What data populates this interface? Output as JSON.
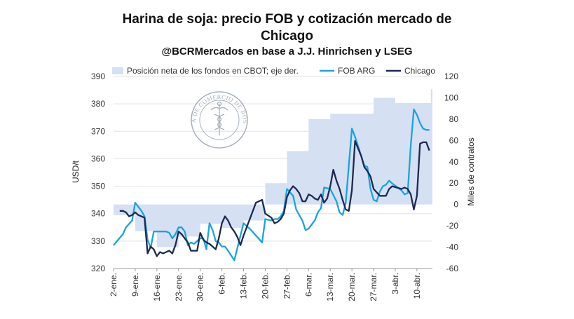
{
  "chart_data": {
    "type": "line",
    "title_line1": "Harina de soja: precio FOB y cotización mercado de",
    "title_line2": "Chicago",
    "subtitle": "@BCRMercados en base a J.J. Hinrichsen y LSEG",
    "ylabel": "USD/t",
    "y2label": "Miles de contratos",
    "ylim": [
      320,
      390
    ],
    "y2lim": [
      -60,
      120
    ],
    "yticks": [
      "320",
      "330",
      "340",
      "350",
      "360",
      "370",
      "380",
      "390"
    ],
    "y2ticks": [
      "-60",
      "-40",
      "-20",
      "0",
      "20",
      "40",
      "60",
      "80",
      "100",
      "120"
    ],
    "xlim": [
      0,
      103
    ],
    "xticks": [
      {
        "label": "2-ene.",
        "t": 0
      },
      {
        "label": "9-ene.",
        "t": 7
      },
      {
        "label": "16-ene.",
        "t": 14
      },
      {
        "label": "23-ene.",
        "t": 21
      },
      {
        "label": "30-ene.",
        "t": 28
      },
      {
        "label": "6-feb.",
        "t": 35
      },
      {
        "label": "13-feb.",
        "t": 42
      },
      {
        "label": "20-feb.",
        "t": 49
      },
      {
        "label": "27-feb.",
        "t": 56
      },
      {
        "label": "6-mar.",
        "t": 63
      },
      {
        "label": "13-mar.",
        "t": 70
      },
      {
        "label": "20-mar.",
        "t": 77
      },
      {
        "label": "27-mar.",
        "t": 84
      },
      {
        "label": "3-abr.",
        "t": 91
      },
      {
        "label": "10-abr.",
        "t": 98
      }
    ],
    "series": [
      {
        "name": "Posición neta de los fondos en CBOT; eje der.",
        "type": "area",
        "axis": "right",
        "color": "#d6e0f3",
        "t": [
          0,
          7,
          7,
          14,
          14,
          21,
          21,
          28,
          28,
          35,
          35,
          42,
          42,
          49,
          49,
          56,
          56,
          63,
          63,
          70,
          70,
          77,
          77,
          84,
          84,
          91,
          91,
          98,
          98,
          102.5,
          102.5,
          103
        ],
        "values": [
          -10,
          -10,
          -25,
          -25,
          -40,
          -40,
          -30,
          -30,
          -18,
          -18,
          -22,
          -22,
          -15,
          -15,
          20,
          20,
          50,
          50,
          80,
          80,
          85,
          85,
          85,
          85,
          100,
          100,
          95,
          95,
          95,
          95,
          108,
          108
        ]
      },
      {
        "name": "FOB ARG",
        "type": "line",
        "axis": "left",
        "color": "#1aa3e0",
        "t": [
          0,
          3,
          4,
          6,
          7,
          9,
          10,
          11,
          12,
          13,
          14,
          17,
          18,
          19,
          20,
          21,
          22,
          23,
          24,
          25,
          26,
          27,
          28,
          29,
          30,
          31,
          32,
          33,
          34,
          35,
          36,
          37,
          39,
          42,
          44,
          48,
          49,
          51,
          52,
          53,
          54,
          55,
          56,
          58,
          59,
          60,
          61,
          62,
          63,
          65,
          66,
          67,
          68,
          70,
          72,
          73,
          74,
          75,
          77,
          78,
          81,
          82,
          83,
          84,
          85,
          86,
          87,
          88,
          89,
          90,
          93,
          94,
          95,
          96,
          97,
          98,
          99,
          100,
          101,
          102
        ],
        "values": [
          328.5,
          332.5,
          335,
          337.5,
          344,
          341,
          339,
          330.5,
          327.5,
          333.5,
          333.5,
          333.5,
          333,
          331,
          332.5,
          335,
          335,
          333.5,
          328.5,
          329.5,
          329,
          330,
          331,
          331,
          327,
          336.5,
          334,
          330,
          329.5,
          328,
          328,
          326.5,
          323,
          336.5,
          334.5,
          329.5,
          338,
          337.5,
          338,
          338,
          339,
          341,
          349,
          346.5,
          341.5,
          339.5,
          337.5,
          334,
          334.5,
          337.5,
          340.5,
          342,
          349.5,
          349,
          344.5,
          340.5,
          339.5,
          344,
          371,
          368,
          357.5,
          357,
          349,
          345,
          344.5,
          348,
          350,
          350.5,
          352,
          351,
          348.5,
          347,
          347.5,
          365,
          378,
          376,
          373,
          371,
          370.5,
          370.5
        ]
      },
      {
        "name": "Chicago",
        "type": "line",
        "axis": "left",
        "color": "#1c2a50",
        "t": [
          0,
          2,
          3,
          4,
          5,
          6,
          7,
          8,
          9,
          10,
          11,
          12,
          13,
          14,
          15,
          16,
          17,
          18,
          19,
          20,
          21,
          22,
          23,
          24,
          25,
          26,
          27,
          28,
          29,
          30,
          31,
          32,
          33,
          34,
          35,
          36,
          37,
          38,
          39,
          40,
          41,
          42,
          44,
          46,
          48,
          49,
          51,
          52,
          53,
          54,
          55,
          56,
          57,
          58,
          59,
          60,
          61,
          62,
          63,
          64,
          65,
          66,
          67,
          68,
          69,
          70,
          71,
          72,
          73,
          74,
          75,
          76,
          77,
          78,
          80,
          81,
          82,
          83,
          84,
          86,
          87,
          88,
          89,
          90,
          93,
          94,
          95,
          96,
          97,
          98,
          99,
          100,
          101,
          102
        ],
        "values": [
          null,
          341,
          341,
          340.5,
          339,
          339.5,
          340.5,
          339.5,
          339,
          338.5,
          325.5,
          328,
          327,
          324.5,
          326,
          325.5,
          326,
          326.5,
          325.5,
          328.5,
          333.5,
          332.5,
          331,
          329.5,
          326.5,
          326.5,
          326.5,
          333,
          330.5,
          329.5,
          329,
          328,
          327,
          331,
          336.5,
          339,
          337.5,
          335,
          333.5,
          331.5,
          328.5,
          332,
          338,
          344,
          345,
          340,
          338.5,
          336.5,
          337,
          338,
          340,
          346,
          348.5,
          350,
          349,
          347.5,
          344.5,
          344.5,
          347,
          346.5,
          345.5,
          345,
          347,
          344,
          345.5,
          350,
          356,
          352,
          349,
          345,
          341.5,
          341,
          348.5,
          366.5,
          361,
          357,
          355.5,
          353.5,
          349,
          346.5,
          346.5,
          346.5,
          349,
          350,
          349,
          349.5,
          349,
          347,
          341.5,
          346.5,
          365.5,
          366,
          366,
          363
        ]
      }
    ],
    "watermark": {
      "arc_text": "BOLSA DE COMERCIO DE ROSARIO",
      "color": "#8a97a6"
    }
  }
}
